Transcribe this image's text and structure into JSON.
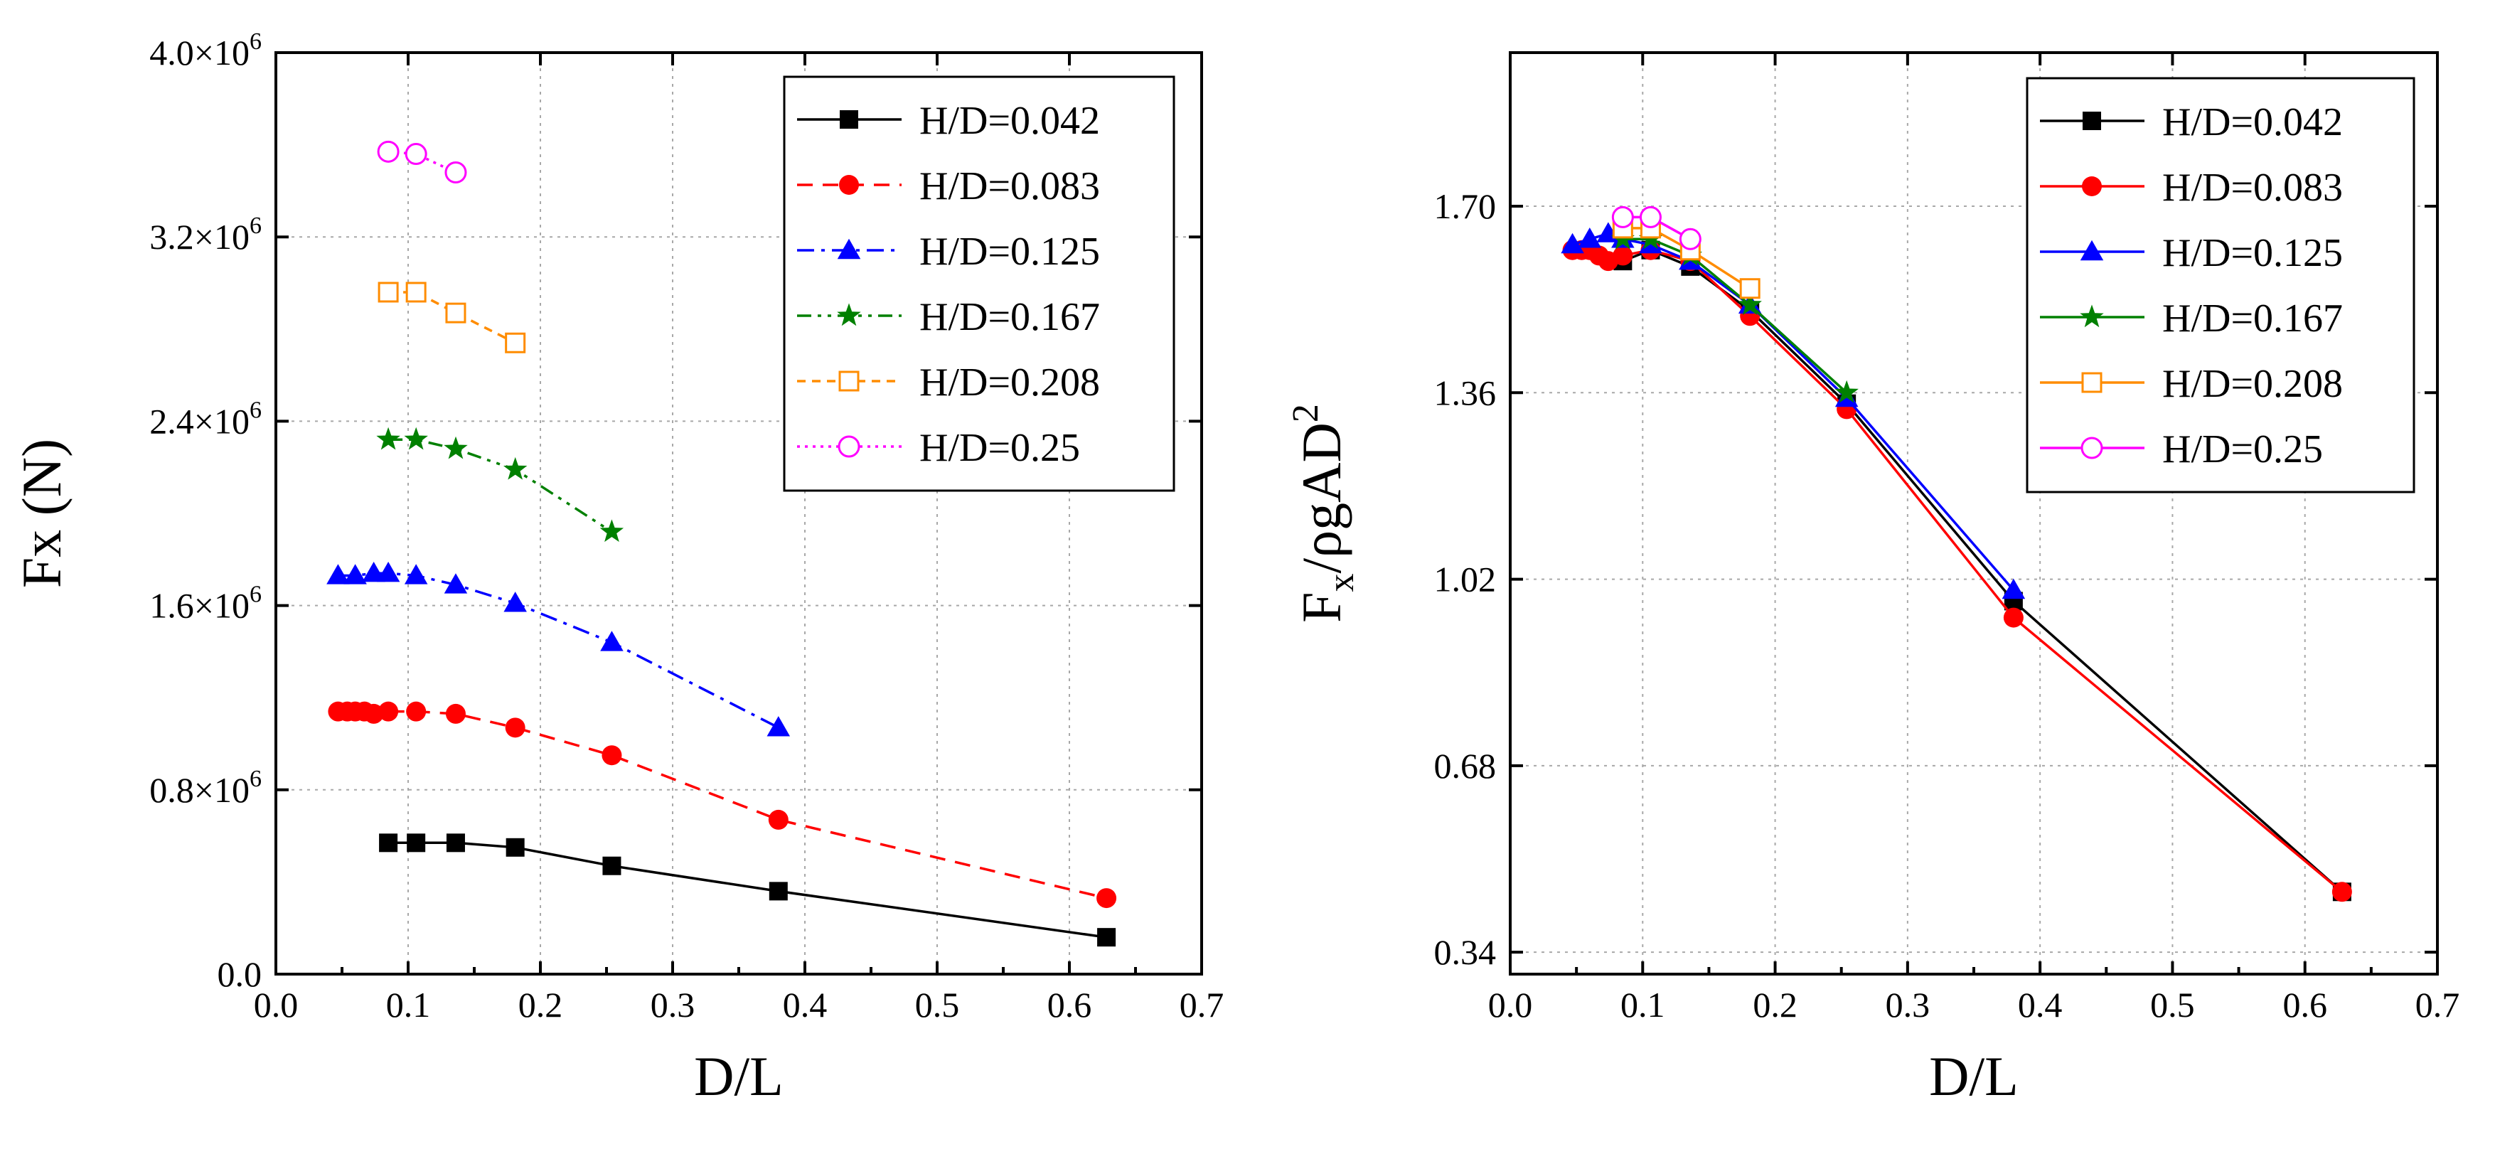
{
  "chart_data": [
    {
      "type": "line",
      "xlabel": "D/L",
      "ylabel": "Fx (N)",
      "xlim": [
        0.0,
        0.7
      ],
      "ylim": [
        0.0,
        4000000
      ],
      "xticks": [
        0.0,
        0.1,
        0.2,
        0.3,
        0.4,
        0.5,
        0.6,
        0.7
      ],
      "yticks": [
        0,
        800000,
        1600000,
        2400000,
        3200000,
        4000000
      ],
      "xtick_labels": [
        "0.0",
        "0.1",
        "0.2",
        "0.3",
        "0.4",
        "0.5",
        "0.6",
        "0.7"
      ],
      "ytick_labels": [
        {
          "mant": "0.0",
          "exp": ""
        },
        {
          "mant": "0.8×10",
          "exp": "6"
        },
        {
          "mant": "1.6×10",
          "exp": "6"
        },
        {
          "mant": "2.4×10",
          "exp": "6"
        },
        {
          "mant": "3.2×10",
          "exp": "6"
        },
        {
          "mant": "4.0×10",
          "exp": "6"
        }
      ],
      "grid": true,
      "legend_position": "top-right",
      "series": [
        {
          "name": "H/D=0.042",
          "color": "#000000",
          "marker": "square-filled",
          "dash": "solid",
          "x": [
            0.085,
            0.106,
            0.136,
            0.181,
            0.254,
            0.38,
            0.628
          ],
          "y": [
            570000,
            570000,
            570000,
            550000,
            470000,
            360000,
            160000
          ]
        },
        {
          "name": "H/D=0.083",
          "color": "#ff0000",
          "marker": "circle-filled",
          "dash": "dashed",
          "x": [
            0.047,
            0.054,
            0.06,
            0.067,
            0.074,
            0.085,
            0.106,
            0.136,
            0.181,
            0.254,
            0.38,
            0.628
          ],
          "y": [
            1140000,
            1140000,
            1140000,
            1140000,
            1130000,
            1140000,
            1140000,
            1130000,
            1070000,
            950000,
            670000,
            330000
          ]
        },
        {
          "name": "H/D=0.125",
          "color": "#0000ff",
          "marker": "triangle-filled",
          "dash": "dashdot",
          "x": [
            0.047,
            0.06,
            0.074,
            0.085,
            0.106,
            0.136,
            0.181,
            0.254,
            0.38
          ],
          "y": [
            1730000,
            1730000,
            1740000,
            1740000,
            1730000,
            1690000,
            1610000,
            1440000,
            1070000
          ]
        },
        {
          "name": "H/D=0.167",
          "color": "#008000",
          "marker": "star-filled",
          "dash": "dashdotdot",
          "x": [
            0.085,
            0.106,
            0.136,
            0.181,
            0.254
          ],
          "y": [
            2320000,
            2320000,
            2280000,
            2190000,
            1920000
          ]
        },
        {
          "name": "H/D=0.208",
          "color": "#ff8c00",
          "marker": "square-open",
          "dash": "shortdash",
          "x": [
            0.085,
            0.106,
            0.136,
            0.181
          ],
          "y": [
            2960000,
            2960000,
            2870000,
            2740000
          ]
        },
        {
          "name": "H/D=0.25",
          "color": "#ff00ff",
          "marker": "circle-open",
          "dash": "dotted",
          "x": [
            0.085,
            0.106,
            0.136
          ],
          "y": [
            3570000,
            3560000,
            3480000
          ]
        }
      ]
    },
    {
      "type": "line",
      "xlabel": "D/L",
      "ylabel": {
        "main": "F",
        "sub": "x",
        "rest": "/ρgAD",
        "sup": "2"
      },
      "xlim": [
        0.0,
        0.7
      ],
      "ylim": [
        0.3,
        1.98
      ],
      "xticks": [
        0.0,
        0.1,
        0.2,
        0.3,
        0.4,
        0.5,
        0.6,
        0.7
      ],
      "yticks": [
        0.34,
        0.68,
        1.02,
        1.36,
        1.7
      ],
      "xtick_labels": [
        "0.0",
        "0.1",
        "0.2",
        "0.3",
        "0.4",
        "0.5",
        "0.6",
        "0.7"
      ],
      "ytick_labels": [
        "0.34",
        "0.68",
        "1.02",
        "1.36",
        "1.70"
      ],
      "grid": true,
      "legend_position": "top-right",
      "series": [
        {
          "name": "H/D=0.042",
          "color": "#000000",
          "marker": "square-filled",
          "dash": "solid",
          "x": [
            0.085,
            0.106,
            0.136,
            0.181,
            0.254,
            0.38,
            0.628
          ],
          "y": [
            1.6,
            1.62,
            1.59,
            1.51,
            1.34,
            0.98,
            0.45
          ]
        },
        {
          "name": "H/D=0.083",
          "color": "#ff0000",
          "marker": "circle-filled",
          "dash": "solid",
          "x": [
            0.047,
            0.054,
            0.06,
            0.067,
            0.074,
            0.085,
            0.106,
            0.136,
            0.181,
            0.254,
            0.38,
            0.628
          ],
          "y": [
            1.62,
            1.62,
            1.62,
            1.61,
            1.6,
            1.61,
            1.62,
            1.6,
            1.5,
            1.33,
            0.95,
            0.45
          ]
        },
        {
          "name": "H/D=0.125",
          "color": "#0000ff",
          "marker": "triangle-filled",
          "dash": "solid",
          "x": [
            0.047,
            0.06,
            0.074,
            0.085,
            0.106,
            0.136,
            0.181,
            0.254,
            0.38
          ],
          "y": [
            1.63,
            1.64,
            1.65,
            1.64,
            1.63,
            1.6,
            1.52,
            1.35,
            1.0
          ]
        },
        {
          "name": "H/D=0.167",
          "color": "#008000",
          "marker": "star-filled",
          "dash": "solid",
          "x": [
            0.085,
            0.106,
            0.136,
            0.181,
            0.254
          ],
          "y": [
            1.64,
            1.64,
            1.61,
            1.52,
            1.36
          ]
        },
        {
          "name": "H/D=0.208",
          "color": "#ff8c00",
          "marker": "square-open",
          "dash": "solid",
          "x": [
            0.085,
            0.106,
            0.136,
            0.181
          ],
          "y": [
            1.66,
            1.66,
            1.62,
            1.55
          ]
        },
        {
          "name": "H/D=0.25",
          "color": "#ff00ff",
          "marker": "circle-open",
          "dash": "solid",
          "x": [
            0.085,
            0.106,
            0.136
          ],
          "y": [
            1.68,
            1.68,
            1.64
          ]
        }
      ]
    }
  ]
}
